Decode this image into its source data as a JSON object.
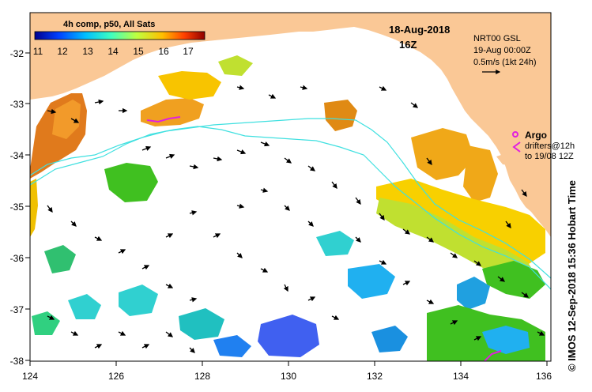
{
  "map": {
    "date": "18-Aug-2018",
    "time": "16Z",
    "product": "NRT00 GSL",
    "valid": "19-Aug 00:00Z",
    "scale": "0.5m/s (1kt 24h)",
    "colorbar": {
      "title": "4h comp, p50, All Sats",
      "ticks": [
        "11",
        "12",
        "13",
        "14",
        "15",
        "16",
        "17"
      ],
      "colors": [
        "#00008f",
        "#0040ff",
        "#00bfff",
        "#3fffbf",
        "#bfff3f",
        "#ffbf00",
        "#ff4000",
        "#8f0000"
      ]
    },
    "legend": {
      "argo": "Argo",
      "drifters": "drifters@12h",
      "drifters_to": "to 19/08 12Z"
    },
    "lon_labels": [
      "124",
      "126",
      "128",
      "130",
      "132",
      "134",
      "136"
    ],
    "lat_labels": [
      "-32",
      "-33",
      "-34",
      "-35",
      "-36",
      "-37",
      "-38"
    ],
    "credit": "© IMOS 12-Sep-2018 15:36 Hobart Time",
    "land_color": "#fac896",
    "contour_color": "#3fe0e0"
  }
}
